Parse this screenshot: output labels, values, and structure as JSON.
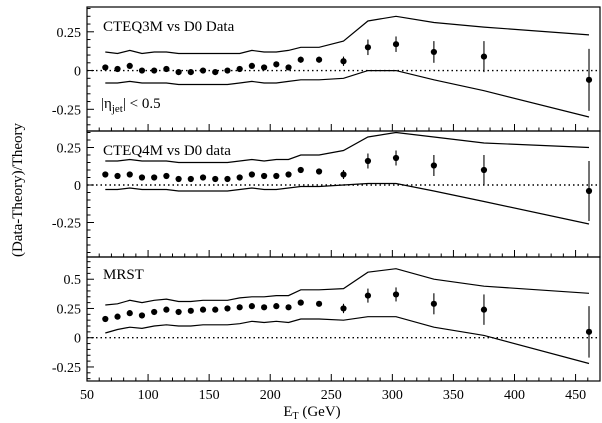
{
  "chart_data": {
    "type": "scatter",
    "xlabel": "E",
    "xlabel_sub": "T",
    "xlabel_unit": " (GeV)",
    "ylabel": "(Data-Theory)/Theory",
    "xlim": [
      50,
      470
    ],
    "x_ticks": [
      50,
      100,
      150,
      200,
      250,
      300,
      350,
      400,
      450
    ],
    "grid": false,
    "x": [
      65,
      75,
      85,
      95,
      105,
      115,
      125,
      135,
      145,
      155,
      165,
      175,
      185,
      195,
      205,
      215,
      225,
      240,
      260,
      280,
      303,
      334,
      375,
      461
    ],
    "panels": [
      {
        "title": "CTEQ3M vs  D0 Data",
        "annotation": {
          "prefix": "|η",
          "sub": "jet",
          "suffix": "| < 0.5"
        },
        "ylim": [
          -0.39,
          0.41
        ],
        "y_ticks": [
          0.25,
          0,
          -0.25
        ],
        "y_tick_labels": [
          "0.25",
          "0",
          "-0.25"
        ],
        "values": [
          0.02,
          0.01,
          0.03,
          0.0,
          0.0,
          0.01,
          -0.01,
          -0.01,
          0.0,
          -0.01,
          0.0,
          0.01,
          0.03,
          0.02,
          0.04,
          0.02,
          0.07,
          0.07,
          0.06,
          0.15,
          0.17,
          0.12,
          0.09,
          -0.06
        ],
        "errors": [
          0.01,
          0.01,
          0.01,
          0.01,
          0.01,
          0.01,
          0.01,
          0.01,
          0.01,
          0.01,
          0.01,
          0.01,
          0.01,
          0.01,
          0.01,
          0.01,
          0.02,
          0.02,
          0.03,
          0.05,
          0.05,
          0.07,
          0.1,
          0.2
        ],
        "band_x": [
          65,
          75,
          85,
          95,
          105,
          115,
          125,
          135,
          145,
          155,
          165,
          175,
          185,
          195,
          205,
          215,
          225,
          240,
          260,
          280,
          303,
          334,
          375,
          461
        ],
        "band_upper": [
          0.12,
          0.11,
          0.13,
          0.11,
          0.12,
          0.12,
          0.11,
          0.11,
          0.11,
          0.11,
          0.11,
          0.11,
          0.13,
          0.12,
          0.12,
          0.13,
          0.15,
          0.15,
          0.19,
          0.32,
          0.35,
          0.31,
          0.28,
          0.23
        ],
        "band_lower": [
          -0.08,
          -0.08,
          -0.07,
          -0.08,
          -0.08,
          -0.08,
          -0.09,
          -0.09,
          -0.09,
          -0.09,
          -0.09,
          -0.08,
          -0.07,
          -0.08,
          -0.08,
          -0.07,
          -0.06,
          -0.06,
          -0.05,
          0.0,
          0.0,
          -0.06,
          -0.13,
          -0.3
        ]
      },
      {
        "title": "CTEQ4M vs  D0 data",
        "annotation": null,
        "ylim": [
          -0.48,
          0.36
        ],
        "y_ticks": [
          0.25,
          0,
          -0.25
        ],
        "y_tick_labels": [
          "0.25",
          "0",
          "-0.25"
        ],
        "values": [
          0.07,
          0.06,
          0.07,
          0.05,
          0.05,
          0.06,
          0.04,
          0.04,
          0.05,
          0.04,
          0.04,
          0.05,
          0.07,
          0.06,
          0.06,
          0.07,
          0.1,
          0.09,
          0.07,
          0.16,
          0.18,
          0.13,
          0.1,
          -0.04
        ],
        "errors": [
          0.01,
          0.01,
          0.01,
          0.01,
          0.01,
          0.01,
          0.01,
          0.01,
          0.01,
          0.01,
          0.01,
          0.01,
          0.01,
          0.01,
          0.01,
          0.01,
          0.02,
          0.02,
          0.03,
          0.05,
          0.05,
          0.07,
          0.1,
          0.2
        ],
        "band_x": [
          65,
          75,
          85,
          95,
          105,
          115,
          125,
          135,
          145,
          155,
          165,
          175,
          185,
          195,
          205,
          215,
          225,
          240,
          260,
          280,
          303,
          334,
          375,
          461
        ],
        "band_upper": [
          0.16,
          0.16,
          0.17,
          0.16,
          0.16,
          0.16,
          0.15,
          0.15,
          0.15,
          0.15,
          0.15,
          0.16,
          0.17,
          0.16,
          0.17,
          0.17,
          0.2,
          0.2,
          0.23,
          0.32,
          0.35,
          0.32,
          0.28,
          0.25
        ],
        "band_lower": [
          -0.03,
          -0.03,
          -0.02,
          -0.03,
          -0.03,
          -0.03,
          -0.04,
          -0.04,
          -0.04,
          -0.04,
          -0.04,
          -0.03,
          -0.02,
          -0.03,
          -0.03,
          -0.02,
          -0.01,
          -0.01,
          0.0,
          0.01,
          0.01,
          -0.04,
          -0.11,
          -0.26
        ]
      },
      {
        "title": "MRST",
        "annotation": null,
        "ylim": [
          -0.37,
          0.69
        ],
        "y_ticks": [
          0.5,
          0.25,
          0,
          -0.25
        ],
        "y_tick_labels": [
          "0.5",
          "0.25",
          "0",
          "-0.25"
        ],
        "values": [
          0.16,
          0.18,
          0.21,
          0.19,
          0.22,
          0.24,
          0.22,
          0.23,
          0.24,
          0.24,
          0.25,
          0.26,
          0.27,
          0.26,
          0.27,
          0.26,
          0.3,
          0.29,
          0.25,
          0.36,
          0.37,
          0.29,
          0.24,
          0.05
        ],
        "errors": [
          0.01,
          0.01,
          0.01,
          0.01,
          0.01,
          0.01,
          0.01,
          0.01,
          0.01,
          0.01,
          0.01,
          0.01,
          0.01,
          0.01,
          0.01,
          0.01,
          0.02,
          0.02,
          0.04,
          0.06,
          0.06,
          0.09,
          0.13,
          0.22
        ],
        "band_x": [
          65,
          75,
          85,
          95,
          105,
          115,
          125,
          135,
          145,
          155,
          165,
          175,
          185,
          195,
          205,
          215,
          225,
          240,
          260,
          280,
          303,
          334,
          375,
          461
        ],
        "band_upper": [
          0.28,
          0.29,
          0.32,
          0.3,
          0.32,
          0.33,
          0.31,
          0.31,
          0.32,
          0.32,
          0.32,
          0.34,
          0.35,
          0.35,
          0.36,
          0.36,
          0.41,
          0.41,
          0.42,
          0.56,
          0.59,
          0.5,
          0.44,
          0.38
        ],
        "band_lower": [
          0.04,
          0.07,
          0.09,
          0.08,
          0.1,
          0.11,
          0.1,
          0.1,
          0.11,
          0.11,
          0.11,
          0.12,
          0.14,
          0.13,
          0.14,
          0.13,
          0.16,
          0.16,
          0.15,
          0.18,
          0.18,
          0.09,
          0.02,
          -0.22
        ]
      }
    ]
  }
}
